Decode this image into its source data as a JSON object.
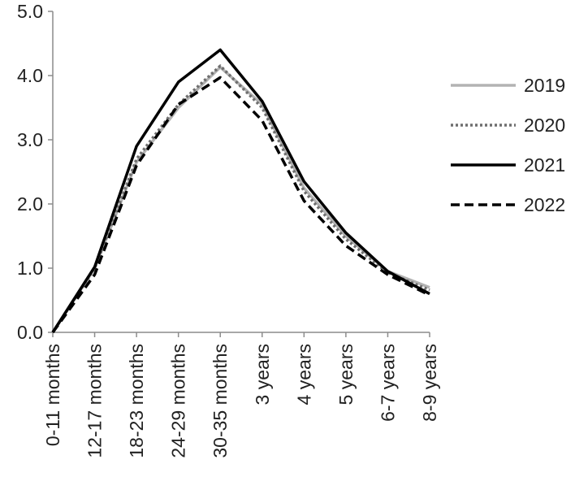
{
  "chart_data": {
    "type": "line",
    "title": "",
    "xlabel": "",
    "ylabel": "",
    "categories": [
      "0-11 months",
      "12-17 months",
      "18-23 months",
      "24-29 months",
      "30-35 months",
      "3 years",
      "4 years",
      "5 years",
      "6-7 years",
      "8-9 years"
    ],
    "ylim": [
      0,
      5
    ],
    "yticks": [
      "0.0",
      "1.0",
      "2.0",
      "3.0",
      "4.0",
      "5.0"
    ],
    "grid": false,
    "legend_position": "right",
    "series": [
      {
        "name": "2019",
        "values": [
          0.0,
          1.0,
          2.65,
          3.5,
          4.13,
          3.55,
          2.25,
          1.5,
          0.95,
          0.7
        ],
        "color": "#b3b3b3",
        "style": "solid"
      },
      {
        "name": "2020",
        "values": [
          0.0,
          1.0,
          2.7,
          3.55,
          4.15,
          3.5,
          2.2,
          1.45,
          0.93,
          0.66
        ],
        "color": "#6f6f6f",
        "style": "dotted"
      },
      {
        "name": "2021",
        "values": [
          0.0,
          1.02,
          2.9,
          3.9,
          4.4,
          3.6,
          2.35,
          1.55,
          0.95,
          0.6
        ],
        "color": "#000000",
        "style": "solid"
      },
      {
        "name": "2022",
        "values": [
          0.0,
          0.9,
          2.6,
          3.55,
          3.97,
          3.3,
          2.05,
          1.35,
          0.9,
          0.58
        ],
        "color": "#000000",
        "style": "dashed"
      }
    ]
  }
}
